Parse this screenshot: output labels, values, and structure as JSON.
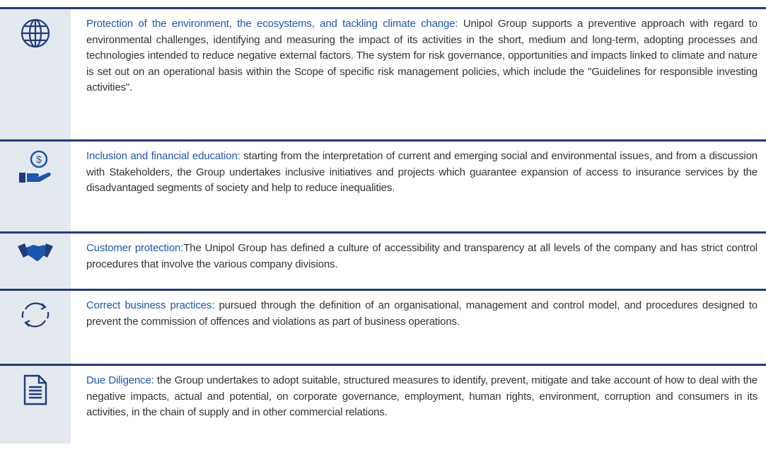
{
  "rows": [
    {
      "title": "Protection of the environment, the ecosystems, and tackling climate change:",
      "text": " Unipol Group supports a preventive approach with regard to environmental challenges, identifying and measuring the impact of its activities in the short, medium and long-term, adopting processes and technologies intended to reduce negative external factors. The system for risk governance, opportunities and impacts linked to climate and nature is set out on an operational basis within the Scope of specific risk management policies, which include the \"Guidelines for responsible investing activities\"."
    },
    {
      "title": "Inclusion and financial education:",
      "text": " starting from the interpretation of current and emerging social and environmental issues, and from a discussion with Stakeholders, the Group undertakes inclusive initiatives and projects which guarantee expansion of access to insurance services by the disadvantaged segments of society and help to reduce inequalities."
    },
    {
      "title": "Customer protection:",
      "text": "The Unipol Group has defined a culture of accessibility and transparency at all levels of the company and has strict control procedures that involve the various company divisions."
    },
    {
      "title": "Correct business practices:",
      "text": " pursued through the definition of an organisational, management and control model, and procedures designed to prevent the commission of offences and violations as part of business operations."
    },
    {
      "title": "Due Diligence:",
      "text": " the Group undertakes to adopt suitable, structured measures to identify, prevent, mitigate and take account of how to deal with the negative impacts, actual and potential, on corporate governance, employment, human rights, environment, corruption and consumers in its activities, in the chain of supply and in other commercial relations."
    }
  ]
}
